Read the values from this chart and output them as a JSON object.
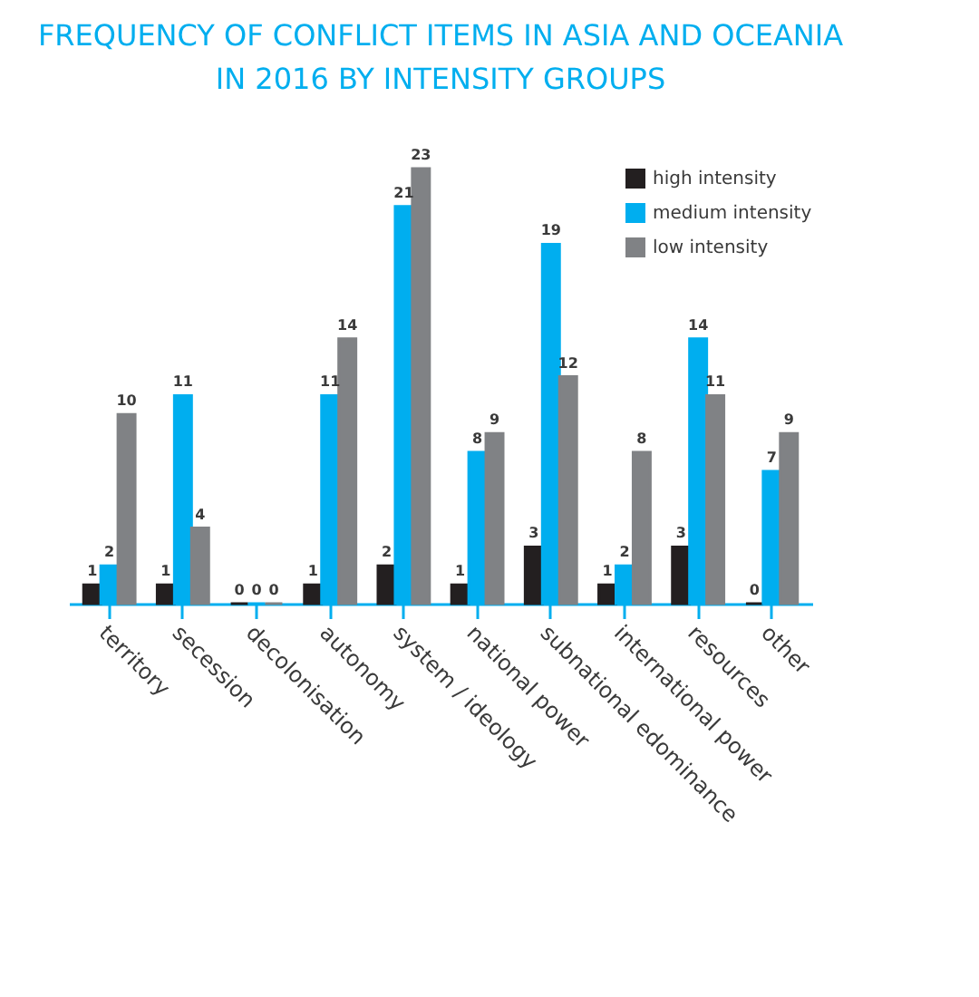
{
  "chart_data": {
    "type": "bar",
    "title": "FREQUENCY OF CONFLICT ITEMS IN ASIA AND OCEANIA\nIN 2016 BY INTENSITY GROUPS",
    "categories": [
      "territory",
      "secession",
      "decolonisation",
      "autonomy",
      "system / ideology",
      "national power",
      "subnational edominance",
      "international power",
      "resources",
      "other"
    ],
    "series": [
      {
        "name": "high intensity",
        "color": "#231f20",
        "values": [
          1,
          1,
          0,
          1,
          2,
          1,
          3,
          1,
          3,
          0
        ]
      },
      {
        "name": "medium intensity",
        "color": "#00aeef",
        "values": [
          2,
          11,
          0,
          11,
          21,
          8,
          19,
          2,
          14,
          7
        ]
      },
      {
        "name": "low intensity",
        "color": "#808285",
        "values": [
          10,
          4,
          0,
          14,
          23,
          9,
          12,
          8,
          11,
          9
        ]
      }
    ],
    "data_labels": true,
    "legend": "top right",
    "grid": false
  }
}
